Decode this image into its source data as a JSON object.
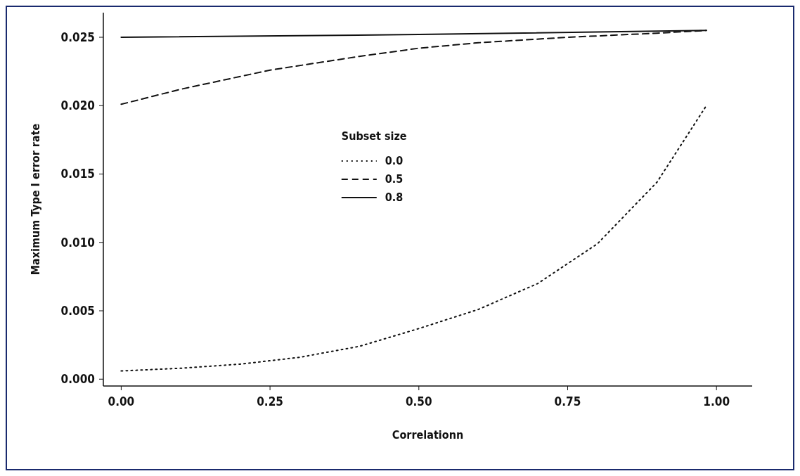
{
  "chart_data": {
    "type": "line",
    "xlabel": "Correlationn",
    "ylabel": "Maximum Type I error rate",
    "legend_title": "Subset size",
    "legend": "center",
    "xlim": [
      -0.03,
      1.06
    ],
    "ylim": [
      -0.0005,
      0.0268
    ],
    "xticks": [
      {
        "value": 0,
        "label": "0.00"
      },
      0.25,
      {
        "value": 0.5,
        "label": "0.50"
      },
      0.75,
      {
        "value": 1,
        "label": "1.00"
      }
    ],
    "yticks": [
      {
        "value": 0,
        "label": "0.000"
      },
      0.005,
      {
        "value": 0.01,
        "label": "0.010"
      },
      0.015,
      {
        "value": 0.02,
        "label": "0.020"
      },
      0.025
    ],
    "grid": false,
    "series": [
      {
        "name": "0.0",
        "color": "#111111",
        "line_style": "dotted",
        "x": [
          0,
          0.1,
          0.2,
          0.3,
          0.4,
          0.5,
          0.6,
          0.7,
          0.8,
          0.9,
          0.983
        ],
        "values": [
          0.0006,
          0.0008,
          0.0011,
          0.0016,
          0.0024,
          0.0037,
          0.0051,
          0.007,
          0.0099,
          0.0144,
          0.02
        ]
      },
      {
        "name": "0.5",
        "color": "#111111",
        "line_style": "dashed",
        "x": [
          0,
          0.1,
          0.25,
          0.4,
          0.5,
          0.6,
          0.75,
          0.9,
          0.983
        ],
        "values": [
          0.0201,
          0.0212,
          0.0226,
          0.0236,
          0.0242,
          0.0246,
          0.025,
          0.0253,
          0.0255
        ]
      },
      {
        "name": "0.8",
        "color": "#111111",
        "line_style": "solid",
        "x": [
          0,
          0.5,
          0.983
        ],
        "values": [
          0.025,
          0.0252,
          0.0255
        ]
      }
    ]
  }
}
